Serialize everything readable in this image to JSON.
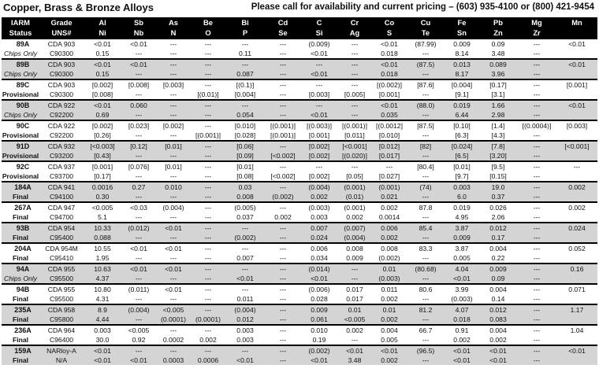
{
  "header": {
    "title": "Copper, Brass & Bronze Alloys",
    "contact": "Please call for availability and current pricing – (603) 935-4100 or (800) 421-9454"
  },
  "columns": [
    [
      "IARM",
      "Status"
    ],
    [
      "Grade",
      "UNS#"
    ],
    [
      "Al",
      "Ni"
    ],
    [
      "Sb",
      "Nb"
    ],
    [
      "As",
      "N"
    ],
    [
      "Be",
      "O"
    ],
    [
      "Bi",
      "P"
    ],
    [
      "Cd",
      "Se"
    ],
    [
      "C",
      "Si"
    ],
    [
      "Cr",
      "Ag"
    ],
    [
      "Co",
      "S"
    ],
    [
      "Cu",
      "Te"
    ],
    [
      "Fe",
      "Sn"
    ],
    [
      "Pb",
      "Zn"
    ],
    [
      "Mg",
      "Zr"
    ],
    [
      "Mn",
      ""
    ]
  ],
  "rows": [
    {
      "shade": false,
      "status_italic": true,
      "r1": [
        "89A",
        "CDA 903",
        "<0.01",
        "<0.01",
        "---",
        "---",
        "---",
        "---",
        "(0.009)",
        "---",
        "<0.01",
        "(87.99)",
        "0.009",
        "0.09",
        "---",
        "<0.01"
      ],
      "r2": [
        "Chips Only",
        "C90300",
        "0.15",
        "---",
        "---",
        "---",
        "0.11",
        "---",
        "<0.01",
        "---",
        "0.018",
        "---",
        "8.14",
        "3.48",
        "---",
        ""
      ]
    },
    {
      "shade": true,
      "status_italic": true,
      "r1": [
        "89B",
        "CDA 903",
        "<0.01",
        "<0.01",
        "---",
        "---",
        "---",
        "---",
        "---",
        "---",
        "<0.01",
        "(87.5)",
        "0.013",
        "0.089",
        "---",
        "<0.01"
      ],
      "r2": [
        "Chips Only",
        "C90300",
        "0.15",
        "---",
        "---",
        "---",
        "0.087",
        "---",
        "<0.01",
        "---",
        "0.018",
        "---",
        "8.17",
        "3.96",
        "---",
        ""
      ]
    },
    {
      "shade": false,
      "status_italic": false,
      "r1": [
        "89C",
        "CDA 903",
        "[0.002]",
        "[0.008]",
        "[0.003]",
        "---",
        "[(0.1)]",
        "---",
        "---",
        "---",
        "[(0.002)]",
        "[87.6]",
        "[0.004]",
        "[0.17]",
        "---",
        "[0.001]"
      ],
      "r2": [
        "Provisional",
        "C90300",
        "[0.008]",
        "---",
        "---",
        "[(0.01)]",
        "[0.004]",
        "---",
        "[0.003]",
        "[0.005]",
        "[0.001]",
        "---",
        "[9.1]",
        "[3.1]",
        "---",
        ""
      ]
    },
    {
      "shade": true,
      "status_italic": true,
      "r1": [
        "90B",
        "CDA 922",
        "<0.01",
        "0.060",
        "---",
        "---",
        "---",
        "---",
        "---",
        "---",
        "<0.01",
        "(88.0)",
        "0.019",
        "1.66",
        "---",
        "<0.01"
      ],
      "r2": [
        "Chips Only",
        "C92200",
        "0.69",
        "---",
        "---",
        "---",
        "0.054",
        "---",
        "<0.01",
        "---",
        "0.035",
        "---",
        "6.44",
        "2.98",
        "---",
        ""
      ]
    },
    {
      "shade": false,
      "status_italic": false,
      "r1": [
        "90C",
        "CDA 922",
        "[0.002]",
        "[0.023]",
        "[0.002]",
        "---",
        "[0.010]",
        "[(0.001)]",
        "[(0.003)]",
        "[(0.001)]",
        "[(0.0012]",
        "[87.5]",
        "[0.10]",
        "[1.4]",
        "[(0.0004)]",
        "[0.003]"
      ],
      "r2": [
        "Provisional",
        "C92200",
        "[0.26]",
        "---",
        "---",
        "[(0.001)]",
        "[0.028]",
        "[(0.001)]",
        "[0.001]",
        "[0.011]",
        "[0.010]",
        "---",
        "[6.3]",
        "[4.3]",
        "---",
        ""
      ]
    },
    {
      "shade": true,
      "status_italic": false,
      "r1": [
        "91D",
        "CDA 932",
        "[<0.003]",
        "[0.12]",
        "[0.01]",
        "---",
        "[0.06]",
        "---",
        "[0.002]",
        "[<0.001]",
        "[0.012]",
        "[82]",
        "[0.024]",
        "[7.8]",
        "---",
        "[<0.001]"
      ],
      "r2": [
        "Provisional",
        "C93200",
        "[0.43]",
        "---",
        "---",
        "---",
        "[0.09]",
        "[<0.002]",
        "[0.002]",
        "[(0.020)]",
        "[0.017]",
        "---",
        "[6.5]",
        "[3.20]",
        "---",
        ""
      ]
    },
    {
      "shade": false,
      "status_italic": false,
      "r1": [
        "92C",
        "CDA 937",
        "[0.001]",
        "[0.076]",
        "[0.01]",
        "---",
        "[0.01]",
        "---",
        "---",
        "---",
        "---",
        "[80.4]",
        "[0.01]",
        "[9.5]",
        "---",
        "---"
      ],
      "r2": [
        "Provisional",
        "C93700",
        "[0.17]",
        "---",
        "---",
        "---",
        "[0.08]",
        "[<0.002]",
        "[0.002]",
        "[0.05]",
        "[0.027]",
        "---",
        "[9.7]",
        "[0.15]",
        "---",
        ""
      ]
    },
    {
      "shade": true,
      "status_italic": false,
      "r1": [
        "184A",
        "CDA 941",
        "0.0016",
        "0.27",
        "0.010",
        "---",
        "0.03",
        "---",
        "(0.004)",
        "(0.001)",
        "(0.001)",
        "(74)",
        "0.003",
        "19.0",
        "---",
        "0.002"
      ],
      "r2": [
        "Final",
        "C94100",
        "0.30",
        "---",
        "---",
        "---",
        "0.008",
        "(0.002)",
        "0.002",
        "(0.01)",
        "0.021",
        "---",
        "6.0",
        "0.37",
        "---",
        ""
      ]
    },
    {
      "shade": false,
      "status_italic": false,
      "r1": [
        "267A",
        "CDA 947",
        "<0.005",
        "<0.03",
        "(0.004)",
        "---",
        "(0.005)",
        "---",
        "(0.003)",
        "(0.001)",
        "0.002",
        "87.8",
        "0.019",
        "0.026",
        "---",
        "0.002"
      ],
      "r2": [
        "Final",
        "C94700",
        "5.1",
        "---",
        "---",
        "---",
        "0.037",
        "0.002",
        "0.003",
        "0.002",
        "0.0014",
        "---",
        "4.95",
        "2.06",
        "---",
        ""
      ]
    },
    {
      "shade": true,
      "status_italic": false,
      "r1": [
        "93B",
        "CDA 954",
        "10.33",
        "(0.012)",
        "<0.01",
        "---",
        "---",
        "---",
        "0.007",
        "(0.007)",
        "0.006",
        "85.4",
        "3.87",
        "0.012",
        "---",
        "0.024"
      ],
      "r2": [
        "Final",
        "C95400",
        "0.088",
        "---",
        "---",
        "---",
        "(0.002)",
        "---",
        "0.024",
        "(0.004)",
        "0.002",
        "---",
        "0.009",
        "0.17",
        "---",
        ""
      ]
    },
    {
      "shade": false,
      "status_italic": false,
      "r1": [
        "204A",
        "CDA 954M",
        "10.55",
        "<0.01",
        "<0.01",
        "---",
        "---",
        "---",
        "0.006",
        "0.008",
        "0.008",
        "83.3",
        "3.87",
        "0.004",
        "---",
        "0.052"
      ],
      "r2": [
        "Final",
        "C95410",
        "1.95",
        "---",
        "---",
        "---",
        "0.007",
        "---",
        "0.034",
        "0.009",
        "(0.002)",
        "---",
        "0.005",
        "0.22",
        "---",
        ""
      ]
    },
    {
      "shade": true,
      "status_italic": true,
      "r1": [
        "94A",
        "CDA 955",
        "10.63",
        "<0.01",
        "<0.01",
        "---",
        "---",
        "---",
        "(0.014)",
        "---",
        "0.01",
        "(80.68)",
        "4.04",
        "0.009",
        "---",
        "0.16"
      ],
      "r2": [
        "Chips Only",
        "C95500",
        "4.37",
        "---",
        "---",
        "---",
        "<0.01",
        "---",
        "<0.01",
        "---",
        "(0.003)",
        "---",
        "<0.01",
        "0.09",
        "---",
        ""
      ]
    },
    {
      "shade": false,
      "status_italic": false,
      "r1": [
        "94B",
        "CDA 955",
        "10.80",
        "(0.011)",
        "<0.01",
        "---",
        "---",
        "---",
        "(0.006)",
        "0.017",
        "0.011",
        "80.6",
        "3.99",
        "0.004",
        "---",
        "0.071"
      ],
      "r2": [
        "Final",
        "C95500",
        "4.31",
        "---",
        "---",
        "---",
        "0.011",
        "---",
        "0.028",
        "0.017",
        "0.002",
        "---",
        "(0.003)",
        "0.14",
        "---",
        ""
      ]
    },
    {
      "shade": true,
      "status_italic": false,
      "r1": [
        "235A",
        "CDA 958",
        "8.9",
        "(0.004)",
        "<0.005",
        "---",
        "(0.004)",
        "---",
        "0.009",
        "0.01",
        "0.01",
        "81.2",
        "4.07",
        "0.012",
        "---",
        "1.17"
      ],
      "r2": [
        "Final",
        "C95800",
        "4.44",
        "---",
        "(0.0001)",
        "(0.0001)",
        "0.012",
        "---",
        "0.061",
        "<0.005",
        "0.002",
        "---",
        "0.018",
        "0.083",
        "---",
        ""
      ]
    },
    {
      "shade": false,
      "status_italic": false,
      "r1": [
        "236A",
        "CDA 964",
        "0.003",
        "<0.005",
        "---",
        "---",
        "0.003",
        "---",
        "0.010",
        "0.002",
        "0.004",
        "66.7",
        "0.91",
        "0.004",
        "---",
        "1.04"
      ],
      "r2": [
        "Final",
        "C96400",
        "30.0",
        "0.92",
        "0.0002",
        "0.002",
        "0.003",
        "---",
        "0.19",
        "---",
        "0.005",
        "---",
        "0.002",
        "0.002",
        "---",
        ""
      ]
    },
    {
      "shade": true,
      "status_italic": false,
      "r1": [
        "159A",
        "NARloy-A",
        "<0.01",
        "---",
        "---",
        "---",
        "---",
        "---",
        "(0.002)",
        "<0.01",
        "<0.01",
        "(96.5)",
        "<0.01",
        "<0.01",
        "---",
        "<0.01"
      ],
      "r2": [
        "Final",
        "N/A",
        "<0.01",
        "<0.01",
        "0.0003",
        "0.0006",
        "<0.01",
        "---",
        "<0.01",
        "3.48",
        "0.002",
        "---",
        "<0.01",
        "<0.01",
        "---",
        ""
      ]
    }
  ]
}
